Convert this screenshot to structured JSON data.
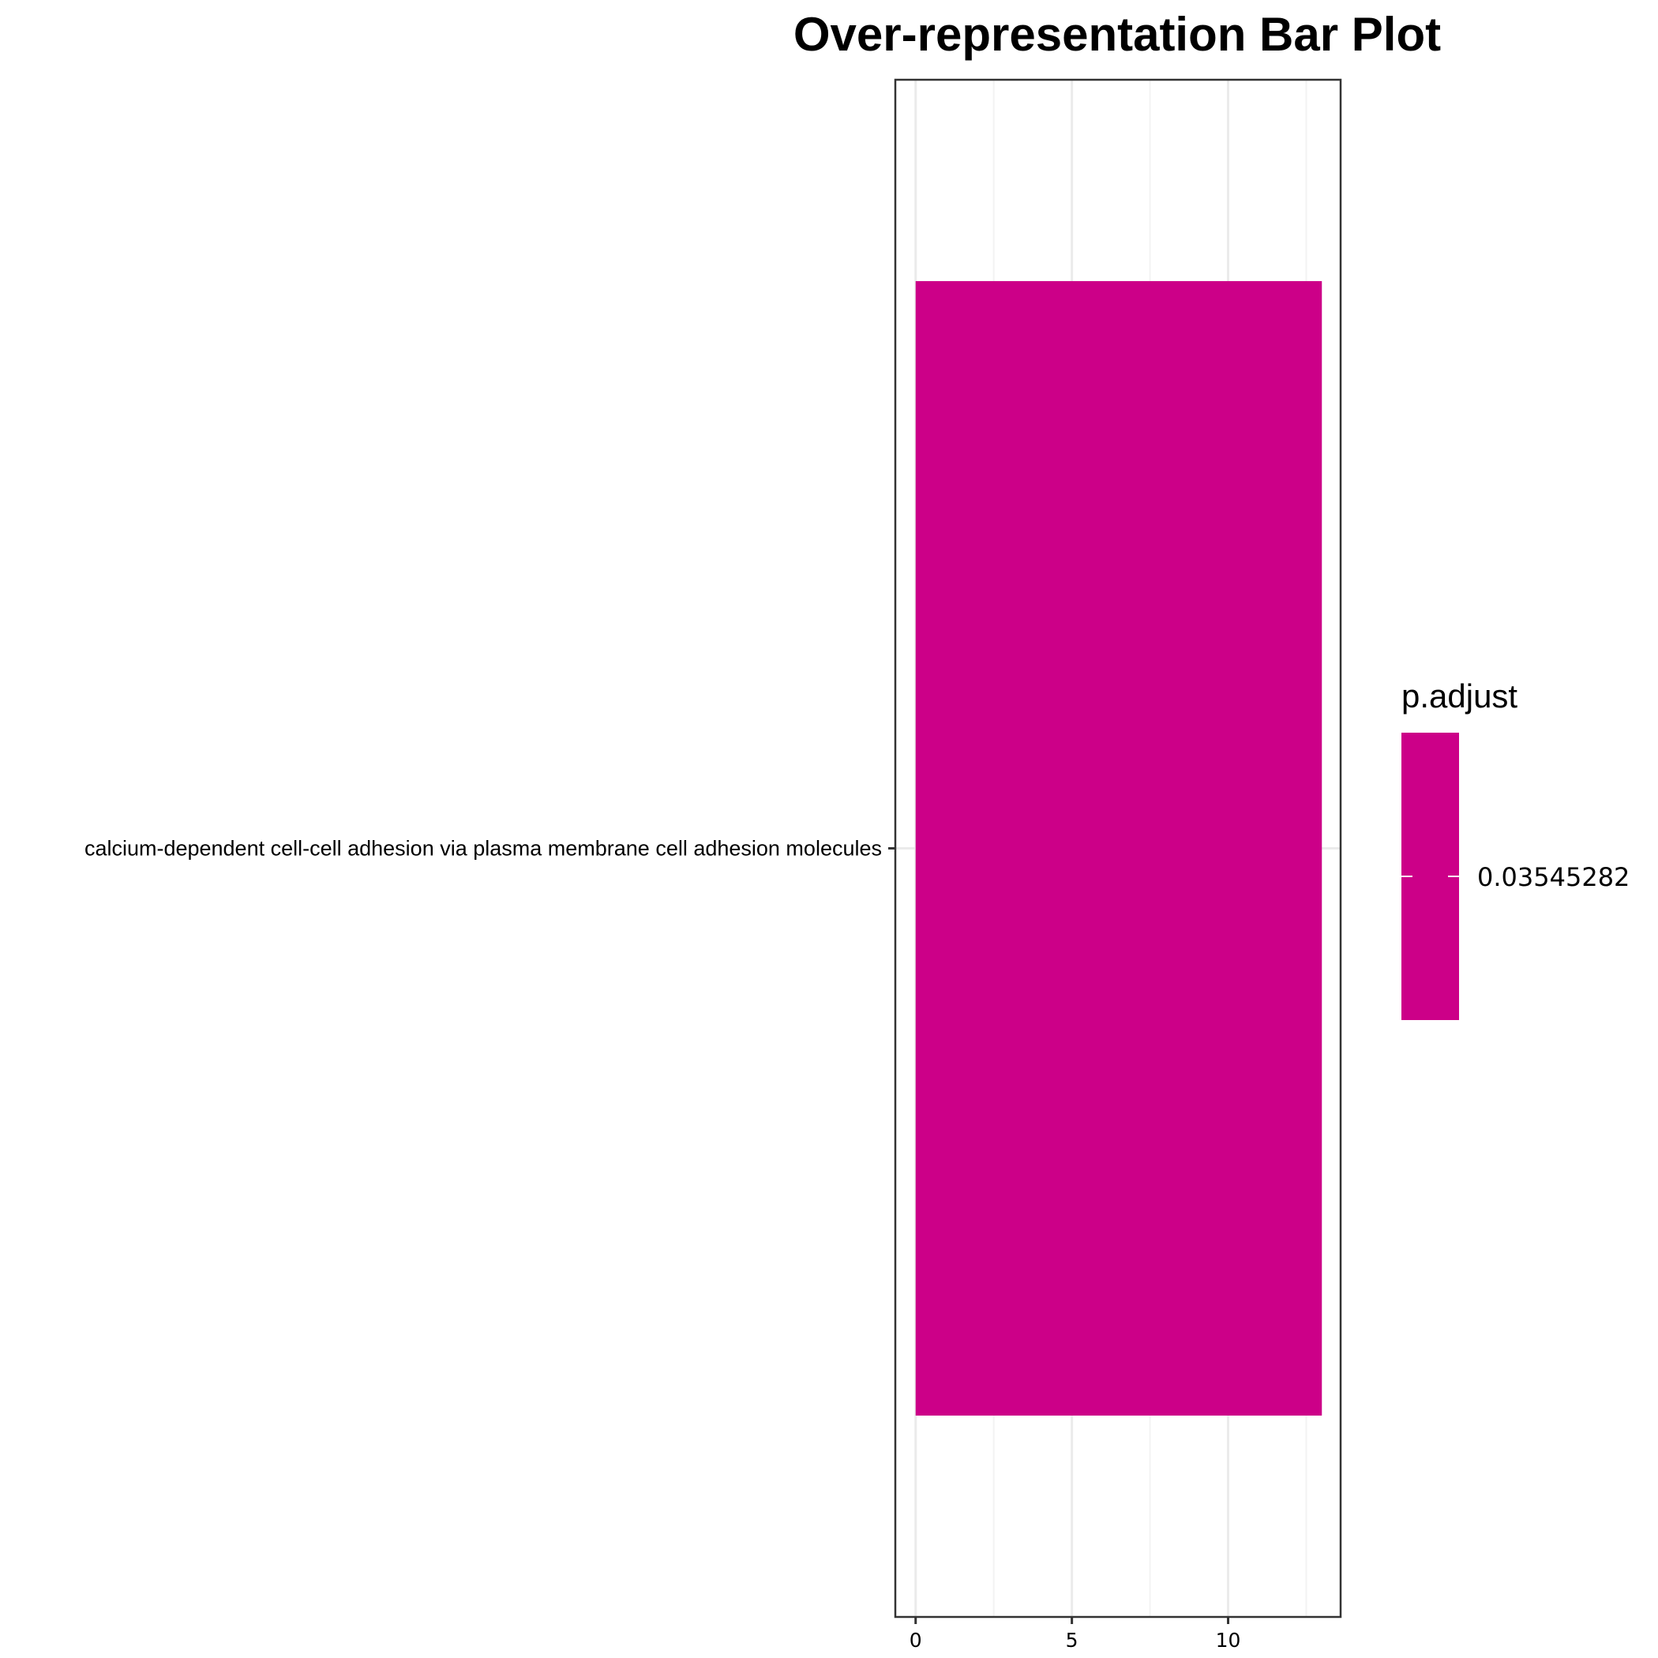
{
  "chart_data": {
    "type": "bar",
    "orientation": "horizontal",
    "title": "Over-representation Bar Plot",
    "xlabel": "",
    "ylabel": "",
    "categories": [
      "calcium-dependent cell-cell adhesion via plasma membrane cell adhesion molecules"
    ],
    "values": [
      13
    ],
    "xlim": [
      -0.65,
      13.6
    ],
    "x_ticks": [
      0,
      5,
      10
    ],
    "x_tick_labels": [
      "0",
      "5",
      "10"
    ],
    "grid": true,
    "legend": {
      "title": "p.adjust",
      "position": "right",
      "entries": [
        {
          "label": "0.03545282",
          "value": 0.03545282,
          "color": "#cc0088"
        }
      ]
    },
    "colors": {
      "bar": "#cc0088",
      "panel_border": "#333333",
      "grid_major": "#ebebeb",
      "grid_minor": "#f3f3f3"
    }
  }
}
